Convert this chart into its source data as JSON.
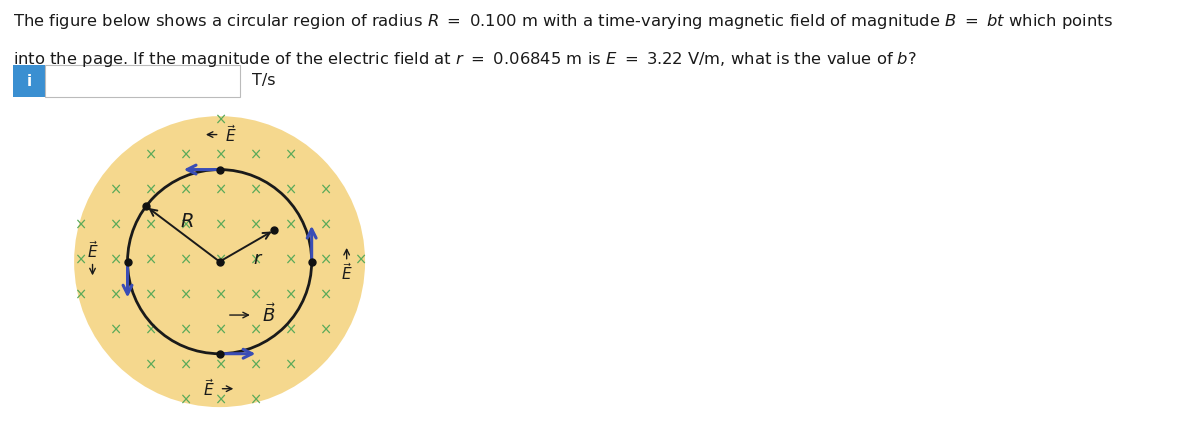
{
  "fig_width": 11.87,
  "fig_height": 4.22,
  "dpi": 100,
  "bg_color": "#ffffff",
  "circle_bg_color": "#f5d88e",
  "circle_edge_color": "#1a1a1a",
  "cross_color": "#5aaa5a",
  "arrow_color": "#3a4db5",
  "line_color": "#1a1a1a",
  "dot_color": "#111111",
  "info_box_color": "#3a8fd1"
}
